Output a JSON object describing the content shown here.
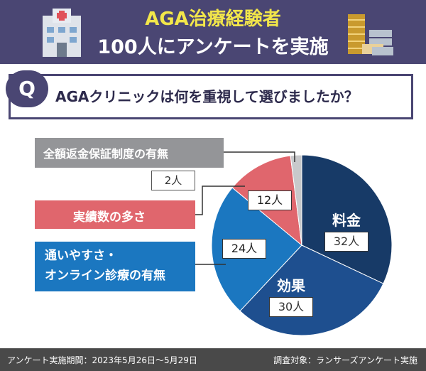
{
  "header": {
    "title_line1": "AGA治療経験者",
    "title_line2": "100人にアンケートを実施",
    "left_icon": "hospital-icon",
    "right_icon": "coins-icon"
  },
  "question": {
    "badge": "Q",
    "text": "AGAクリニックは何を重視して選びましたか？"
  },
  "chart_data": {
    "type": "pie",
    "unit": "人",
    "slices": [
      {
        "name": "料金",
        "value": 32,
        "label": "32人",
        "color": "#173a67"
      },
      {
        "name": "効果",
        "value": 30,
        "label": "30人",
        "color": "#1e4f8f"
      },
      {
        "name": "通いやすさ・オンライン診療の有無",
        "value": 24,
        "label": "24人",
        "color": "#1b77c0"
      },
      {
        "name": "実績数の多さ",
        "value": 12,
        "label": "12人",
        "color": "#e0666d"
      },
      {
        "name": "全額返金保証制度の有無",
        "value": 2,
        "label": "2人",
        "color": "#c8c9cb"
      }
    ]
  },
  "labels": {
    "grey_name": "全額返金保証制度の有無",
    "grey_count": "2人",
    "red_name": "実績数の多さ",
    "blue_line1": "通いやすさ・",
    "blue_line2": "オンライン診療の有無",
    "slice1_name": "料金",
    "slice1_count": "32人",
    "slice2_name": "効果",
    "slice2_count": "30人",
    "slice3_count": "24人",
    "slice4_count": "12人"
  },
  "footer": {
    "left": "アンケート実施期間：2023年5月26日～5月29日",
    "right": "調査対象：ランサーズアンケート実施"
  }
}
